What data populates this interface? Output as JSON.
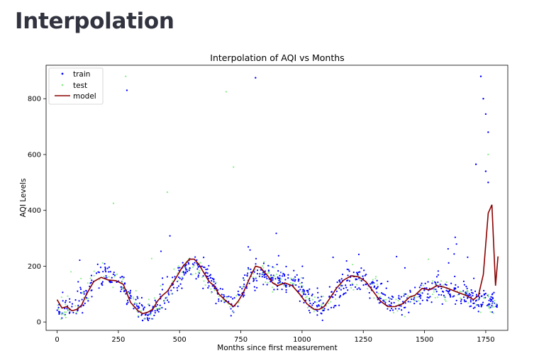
{
  "page": {
    "heading": "Interpolation"
  },
  "chart_data": {
    "type": "scatter",
    "title": "Interpolation of AQI vs Months",
    "xlabel": "Months since first measurement",
    "ylabel": "AQI Levels",
    "xlim": [
      -45,
      1840
    ],
    "ylim": [
      -30,
      920
    ],
    "xticks": [
      0,
      250,
      500,
      750,
      1000,
      1250,
      1500,
      1750
    ],
    "yticks": [
      0,
      200,
      400,
      600,
      800
    ],
    "grid": false,
    "legend_position": "top-left",
    "legend": [
      "train",
      "test",
      "model"
    ],
    "colors": {
      "train": "#0000ff",
      "test": "#90ee90",
      "model": "#8b0000"
    },
    "series": [
      {
        "name": "model",
        "kind": "line",
        "x": [
          0,
          20,
          40,
          60,
          80,
          100,
          120,
          150,
          180,
          210,
          240,
          270,
          300,
          330,
          350,
          370,
          390,
          410,
          430,
          450,
          480,
          510,
          540,
          560,
          580,
          600,
          620,
          640,
          660,
          690,
          720,
          740,
          760,
          790,
          810,
          830,
          860,
          880,
          900,
          930,
          960,
          990,
          1020,
          1050,
          1070,
          1090,
          1110,
          1140,
          1170,
          1200,
          1230,
          1260,
          1290,
          1320,
          1350,
          1380,
          1410,
          1440,
          1460,
          1490,
          1520,
          1550,
          1580,
          1610,
          1640,
          1670,
          1700,
          1720,
          1740,
          1760,
          1775,
          1790,
          1800
        ],
        "y": [
          80,
          50,
          55,
          40,
          45,
          60,
          100,
          145,
          160,
          150,
          148,
          135,
          70,
          40,
          30,
          35,
          45,
          75,
          95,
          110,
          150,
          195,
          225,
          225,
          205,
          175,
          145,
          130,
          100,
          75,
          55,
          75,
          105,
          165,
          200,
          195,
          165,
          140,
          130,
          140,
          130,
          100,
          65,
          45,
          45,
          55,
          80,
          120,
          150,
          165,
          162,
          145,
          110,
          75,
          55,
          55,
          65,
          90,
          95,
          120,
          115,
          130,
          125,
          115,
          105,
          95,
          80,
          95,
          170,
          390,
          420,
          130,
          235
        ]
      },
      {
        "name": "train",
        "kind": "scatter",
        "outliers": [
          [
            285,
            830
          ],
          [
            810,
            875
          ],
          [
            1710,
            565
          ],
          [
            1730,
            880
          ],
          [
            1740,
            800
          ],
          [
            1750,
            745
          ],
          [
            1760,
            680
          ],
          [
            1750,
            540
          ],
          [
            1760,
            500
          ]
        ],
        "trend_keys": [
          [
            0,
            60
          ],
          [
            50,
            40
          ],
          [
            100,
            70
          ],
          [
            130,
            120
          ],
          [
            160,
            160
          ],
          [
            200,
            175
          ],
          [
            240,
            150
          ],
          [
            270,
            140
          ],
          [
            300,
            90
          ],
          [
            330,
            50
          ],
          [
            370,
            30
          ],
          [
            420,
            70
          ],
          [
            470,
            130
          ],
          [
            520,
            190
          ],
          [
            560,
            205
          ],
          [
            600,
            170
          ],
          [
            650,
            120
          ],
          [
            690,
            80
          ],
          [
            730,
            60
          ],
          [
            780,
            160
          ],
          [
            830,
            180
          ],
          [
            880,
            160
          ],
          [
            930,
            150
          ],
          [
            980,
            140
          ],
          [
            1020,
            80
          ],
          [
            1060,
            60
          ],
          [
            1100,
            60
          ],
          [
            1150,
            110
          ],
          [
            1200,
            150
          ],
          [
            1250,
            150
          ],
          [
            1300,
            120
          ],
          [
            1350,
            70
          ],
          [
            1400,
            65
          ],
          [
            1450,
            80
          ],
          [
            1500,
            110
          ],
          [
            1550,
            130
          ],
          [
            1600,
            115
          ],
          [
            1650,
            100
          ],
          [
            1700,
            80
          ],
          [
            1790,
            60
          ]
        ],
        "count": 900,
        "spread": 32
      },
      {
        "name": "test",
        "kind": "scatter",
        "outliers": [
          [
            280,
            880
          ],
          [
            690,
            825
          ],
          [
            720,
            555
          ],
          [
            450,
            465
          ],
          [
            1760,
            600
          ],
          [
            230,
            425
          ]
        ],
        "trend_keys": [
          [
            0,
            60
          ],
          [
            50,
            40
          ],
          [
            100,
            70
          ],
          [
            130,
            120
          ],
          [
            160,
            160
          ],
          [
            200,
            175
          ],
          [
            240,
            150
          ],
          [
            270,
            140
          ],
          [
            300,
            90
          ],
          [
            330,
            50
          ],
          [
            370,
            30
          ],
          [
            420,
            70
          ],
          [
            470,
            130
          ],
          [
            520,
            190
          ],
          [
            560,
            205
          ],
          [
            600,
            170
          ],
          [
            650,
            120
          ],
          [
            690,
            80
          ],
          [
            730,
            60
          ],
          [
            780,
            160
          ],
          [
            830,
            180
          ],
          [
            880,
            160
          ],
          [
            930,
            150
          ],
          [
            980,
            140
          ],
          [
            1020,
            80
          ],
          [
            1060,
            60
          ],
          [
            1100,
            60
          ],
          [
            1150,
            110
          ],
          [
            1200,
            150
          ],
          [
            1250,
            150
          ],
          [
            1300,
            120
          ],
          [
            1350,
            70
          ],
          [
            1400,
            65
          ],
          [
            1450,
            80
          ],
          [
            1500,
            110
          ],
          [
            1550,
            130
          ],
          [
            1600,
            115
          ],
          [
            1650,
            100
          ],
          [
            1700,
            80
          ],
          [
            1790,
            60
          ]
        ],
        "count": 260,
        "spread": 30
      }
    ]
  }
}
